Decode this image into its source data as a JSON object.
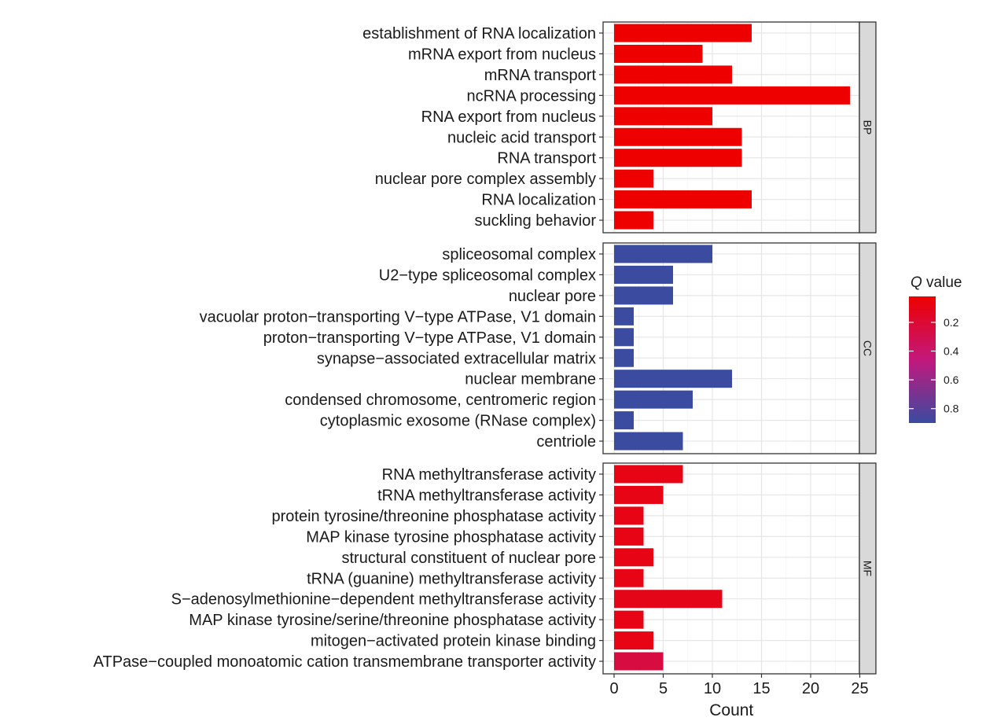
{
  "chart_data": {
    "type": "bar",
    "orientation": "horizontal",
    "xlabel": "Count",
    "xlim": [
      0,
      25
    ],
    "x_ticks": [
      0,
      5,
      10,
      15,
      20,
      25
    ],
    "grid": true,
    "legend": {
      "title_italic": "Q",
      "title_rest": " value",
      "placement": "right",
      "range": [
        0.02,
        0.9
      ],
      "ticks": [
        0.2,
        0.4,
        0.6,
        0.8
      ],
      "tick_labels": [
        "0.2",
        "0.4",
        "0.6",
        "0.8"
      ],
      "low_color": "#ee0000",
      "high_color": "#3a4ba0"
    },
    "facets": [
      {
        "name": "BP",
        "categories": [
          "establishment of RNA localization",
          "mRNA export from nucleus",
          "mRNA transport",
          "ncRNA processing",
          "RNA export from nucleus",
          "nucleic acid transport",
          "RNA transport",
          "nuclear pore complex assembly",
          "RNA localization",
          "suckling behavior"
        ],
        "values": [
          14,
          9,
          12,
          24,
          10,
          13,
          13,
          4,
          14,
          4
        ],
        "qvalues": [
          0.02,
          0.02,
          0.02,
          0.02,
          0.02,
          0.02,
          0.02,
          0.02,
          0.02,
          0.02
        ]
      },
      {
        "name": "CC",
        "categories": [
          "spliceosomal complex",
          "U2−type spliceosomal complex",
          "nuclear pore",
          "vacuolar proton−transporting V−type ATPase, V1 domain",
          "proton−transporting V−type ATPase, V1 domain",
          "synapse−associated extracellular matrix",
          "nuclear membrane",
          "condensed chromosome, centromeric region",
          "cytoplasmic exosome (RNase complex)",
          "centriole"
        ],
        "values": [
          10,
          6,
          6,
          2,
          2,
          2,
          12,
          8,
          2,
          7
        ],
        "qvalues": [
          0.9,
          0.9,
          0.9,
          0.9,
          0.9,
          0.9,
          0.9,
          0.9,
          0.9,
          0.9
        ]
      },
      {
        "name": "MF",
        "categories": [
          "RNA methyltransferase activity",
          "tRNA methyltransferase activity",
          "protein tyrosine/threonine phosphatase activity",
          "MAP kinase tyrosine phosphatase activity",
          "structural constituent of nuclear pore",
          "tRNA (guanine) methyltransferase activity",
          "S−adenosylmethionine−dependent methyltransferase activity",
          "MAP kinase tyrosine/serine/threonine phosphatase activity",
          "mitogen−activated protein kinase binding",
          "ATPase−coupled monoatomic cation transmembrane transporter activity"
        ],
        "values": [
          7,
          5,
          3,
          3,
          4,
          3,
          11,
          3,
          4,
          5
        ],
        "qvalues": [
          0.09,
          0.09,
          0.09,
          0.09,
          0.09,
          0.09,
          0.11,
          0.09,
          0.09,
          0.25
        ]
      }
    ]
  }
}
